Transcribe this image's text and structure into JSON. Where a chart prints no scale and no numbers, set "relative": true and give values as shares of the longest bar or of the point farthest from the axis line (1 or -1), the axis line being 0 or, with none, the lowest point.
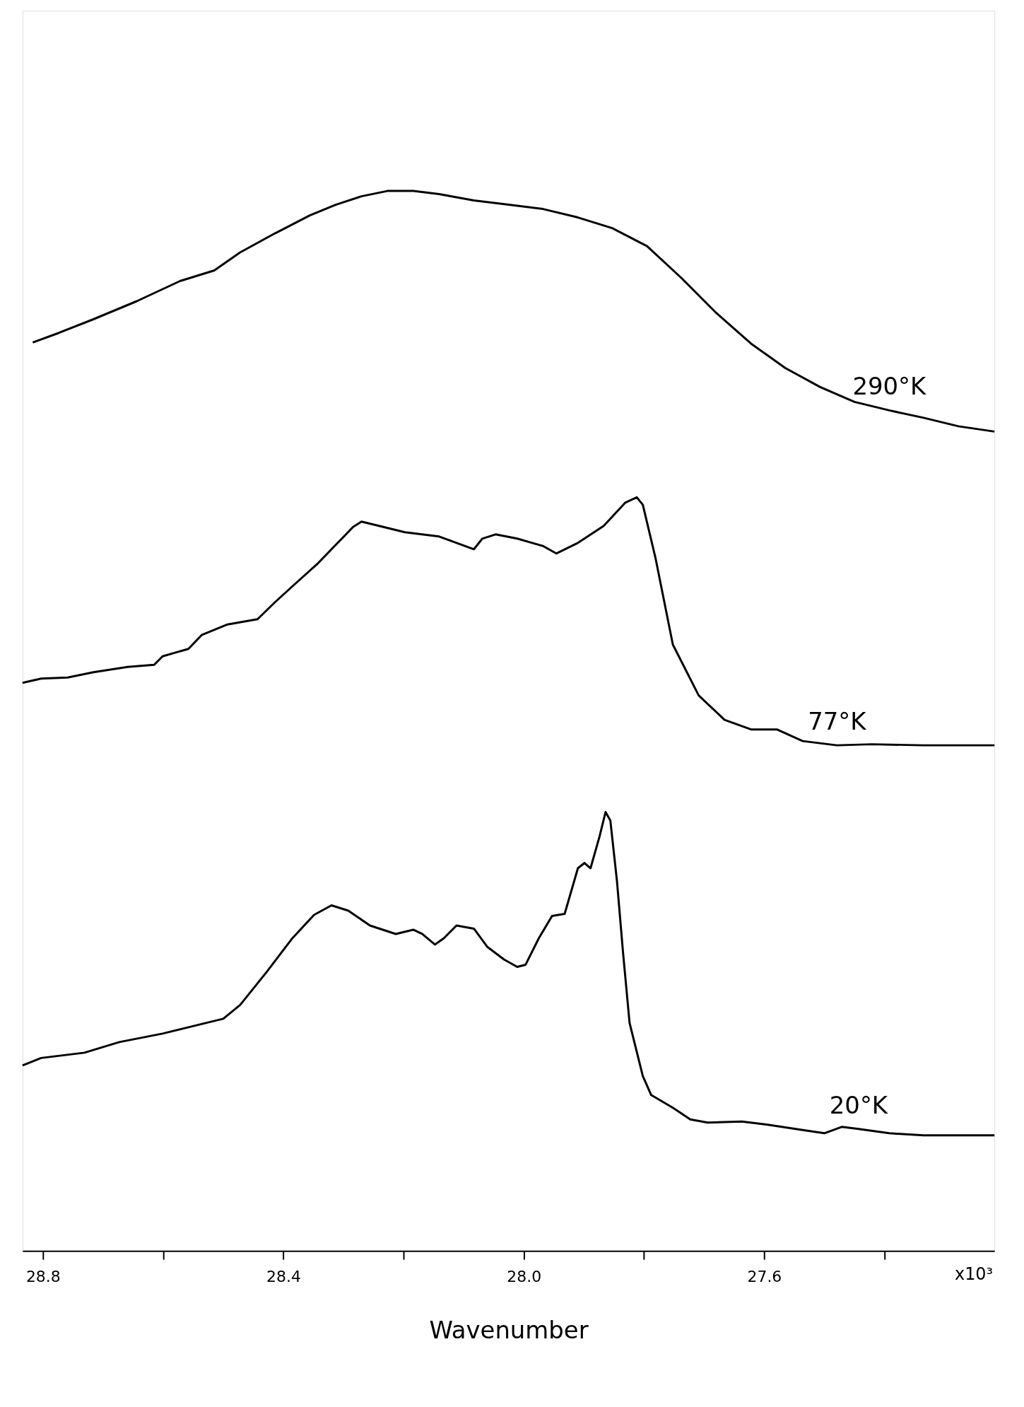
{
  "chart_data": {
    "type": "line",
    "relative": true,
    "xlabel": "Wavenumber",
    "xlim": [
      28.834,
      27.217
    ],
    "xticks": [
      28.8,
      {
        "value": 28.6,
        "label": null
      },
      28.4,
      {
        "value": 28.2,
        "label": null
      },
      {
        "value": 28.0,
        "label": "28.0"
      },
      {
        "value": 27.8,
        "label": null
      },
      27.6,
      {
        "value": 27.4,
        "label": null
      }
    ],
    "tick_labels": "x",
    "grid": false,
    "marker": "none",
    "line_style": "solid",
    "annotations": [
      "x10³"
    ],
    "series": [
      {
        "name": "290°K",
        "color": "#000000",
        "x": [
          28.817,
          28.774,
          28.716,
          28.644,
          28.572,
          28.515,
          28.472,
          28.414,
          28.356,
          28.313,
          28.27,
          28.227,
          28.184,
          28.141,
          28.083,
          28.025,
          27.968,
          27.91,
          27.853,
          27.795,
          27.738,
          27.68,
          27.622,
          27.565,
          27.507,
          27.45,
          27.392,
          27.335,
          27.277,
          27.217
        ],
        "values": [
          0.857,
          0.866,
          0.879,
          0.896,
          0.915,
          0.925,
          0.942,
          0.96,
          0.977,
          0.987,
          0.995,
          1.0,
          1.0,
          0.997,
          0.991,
          0.987,
          0.983,
          0.975,
          0.965,
          0.948,
          0.918,
          0.885,
          0.856,
          0.833,
          0.815,
          0.801,
          0.793,
          0.786,
          0.778,
          0.773
        ]
      },
      {
        "name": "77°K",
        "color": "#000000",
        "x": [
          28.834,
          28.803,
          28.759,
          28.716,
          28.659,
          28.615,
          28.601,
          28.558,
          28.536,
          28.493,
          28.443,
          28.414,
          28.385,
          28.342,
          28.313,
          28.284,
          28.27,
          28.241,
          28.198,
          28.141,
          28.112,
          28.083,
          28.069,
          28.047,
          28.011,
          27.968,
          27.946,
          27.91,
          27.867,
          27.831,
          27.812,
          27.802,
          27.781,
          27.752,
          27.709,
          27.666,
          27.622,
          27.579,
          27.536,
          27.479,
          27.421,
          27.335,
          27.217
        ],
        "values": [
          0.536,
          0.54,
          0.541,
          0.546,
          0.551,
          0.553,
          0.561,
          0.568,
          0.581,
          0.591,
          0.596,
          0.612,
          0.627,
          0.649,
          0.666,
          0.683,
          0.688,
          0.684,
          0.678,
          0.674,
          0.668,
          0.662,
          0.672,
          0.676,
          0.672,
          0.665,
          0.658,
          0.668,
          0.684,
          0.706,
          0.711,
          0.704,
          0.654,
          0.572,
          0.524,
          0.501,
          0.492,
          0.492,
          0.481,
          0.477,
          0.478,
          0.477,
          0.477
        ]
      },
      {
        "name": "20°K",
        "color": "#000000",
        "x": [
          28.834,
          28.803,
          28.731,
          28.673,
          28.601,
          28.529,
          28.5,
          28.472,
          28.428,
          28.385,
          28.349,
          28.32,
          28.292,
          28.256,
          28.213,
          28.184,
          28.169,
          28.148,
          28.133,
          28.112,
          28.083,
          28.061,
          28.033,
          28.011,
          27.997,
          27.975,
          27.953,
          27.932,
          27.91,
          27.899,
          27.889,
          27.874,
          27.864,
          27.856,
          27.845,
          27.835,
          27.824,
          27.802,
          27.788,
          27.752,
          27.723,
          27.694,
          27.637,
          27.594,
          27.536,
          27.5,
          27.471,
          27.443,
          27.392,
          27.335,
          27.217
        ],
        "values": [
          0.175,
          0.182,
          0.187,
          0.197,
          0.205,
          0.215,
          0.219,
          0.232,
          0.263,
          0.295,
          0.317,
          0.326,
          0.321,
          0.307,
          0.299,
          0.303,
          0.299,
          0.289,
          0.295,
          0.307,
          0.304,
          0.287,
          0.275,
          0.268,
          0.27,
          0.295,
          0.316,
          0.318,
          0.361,
          0.366,
          0.361,
          0.391,
          0.414,
          0.406,
          0.349,
          0.282,
          0.215,
          0.165,
          0.147,
          0.135,
          0.124,
          0.121,
          0.122,
          0.119,
          0.114,
          0.111,
          0.117,
          0.115,
          0.111,
          0.109,
          0.109
        ]
      }
    ]
  }
}
